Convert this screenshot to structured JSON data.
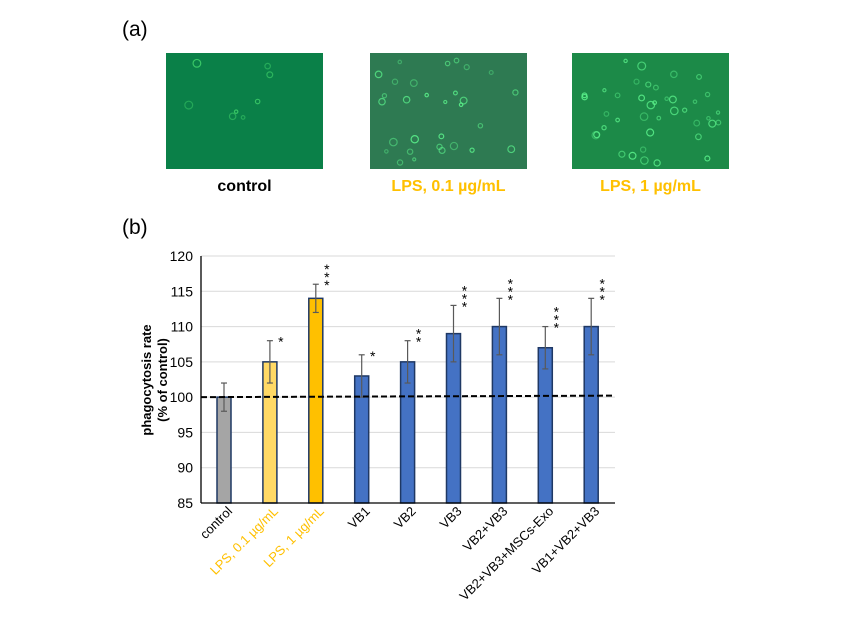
{
  "panel_a": {
    "label": "(a)",
    "images": [
      {
        "caption": "control",
        "caption_color": "#000000",
        "background": "#0a8048"
      },
      {
        "caption": "LPS, 0.1 µg/mL",
        "caption_color": "#ffc000",
        "background": "#2e7a52"
      },
      {
        "caption": "LPS, 1 µg/mL",
        "caption_color": "#ffc000",
        "background": "#1c8a48"
      }
    ]
  },
  "panel_b": {
    "label": "(b)"
  },
  "chart_data": {
    "type": "bar",
    "title": "",
    "xlabel": "",
    "ylabel": "phagocytosis rate\n(% of control)",
    "ylabel_lines": [
      "phagocytosis rate",
      "(% of control)"
    ],
    "ylim": [
      85,
      120
    ],
    "yticks": [
      85,
      90,
      95,
      100,
      105,
      110,
      115,
      120
    ],
    "grid": true,
    "reference_line": {
      "y": 100,
      "style": "dashed"
    },
    "categories": [
      "control",
      "LPS, 0.1 µg/mL",
      "LPS, 1 µg/mL",
      "VB1",
      "VB2",
      "VB3",
      "VB2+VB3",
      "VB2+VB3+MSCs-Exo",
      "VB1+VB2+VB3"
    ],
    "category_label_colors": [
      "#000000",
      "#ffc000",
      "#ffc000",
      "#000000",
      "#000000",
      "#000000",
      "#000000",
      "#000000",
      "#000000"
    ],
    "values": [
      100,
      105,
      114,
      103,
      105,
      109,
      110,
      107,
      110
    ],
    "errors": [
      2,
      3,
      2,
      3,
      3,
      4,
      4,
      3,
      4
    ],
    "significance": [
      "",
      "*",
      "***",
      "*",
      "**",
      "***",
      "***",
      "***",
      "***"
    ],
    "bar_colors": [
      "#a5a5a5",
      "#ffd966",
      "#ffc000",
      "#4472c4",
      "#4472c4",
      "#4472c4",
      "#4472c4",
      "#4472c4",
      "#4472c4"
    ],
    "bar_edge_color": "#1f3864"
  }
}
